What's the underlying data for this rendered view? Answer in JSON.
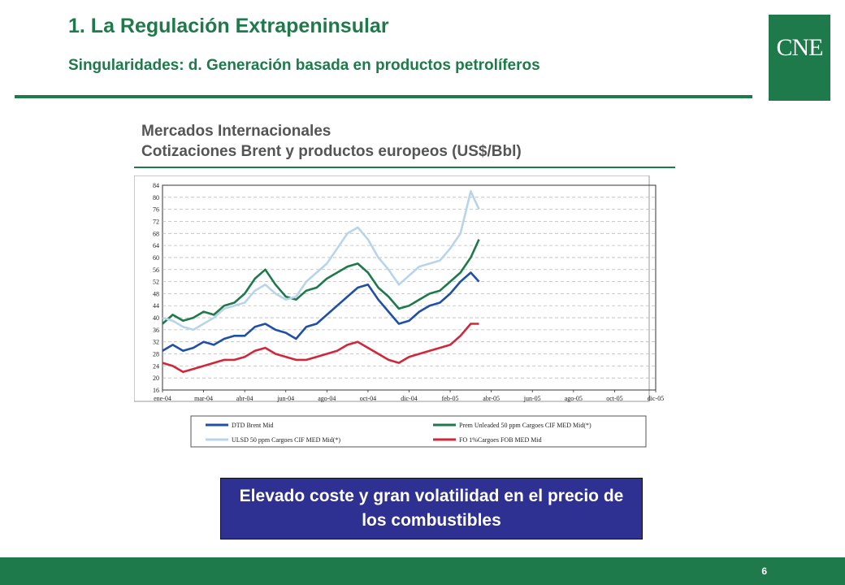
{
  "slide": {
    "title": "1. La Regulación Extrapeninsular",
    "subtitle": "Singularidades: d. Generación basada en productos petrolíferos",
    "logo_text": "CNE",
    "callout": "Elevado coste y gran volatilidad en el precio de los combustibles",
    "page_number": "6",
    "colors": {
      "accent": "#1e7a4a",
      "callout": "#2e3092"
    }
  },
  "chart_data": {
    "type": "line",
    "title_line1": "Mercados Internacionales",
    "title_line2": "Cotizaciones Brent y productos europeos (US$/Bbl)",
    "ylim": [
      16,
      84
    ],
    "yticks": [
      "16",
      "20",
      "24",
      "28",
      "32",
      "36",
      "40",
      "44",
      "48",
      "52",
      "56",
      "60",
      "64",
      "68",
      "72",
      "76",
      "80",
      "84"
    ],
    "xticks": [
      "ene-04",
      "mar-04",
      "abr-04",
      "jun-04",
      "ago-04",
      "oct-04",
      "dic-04",
      "feb-05",
      "abr-05",
      "jun-05",
      "ago-05",
      "oct-05",
      "dic-05"
    ],
    "series": [
      {
        "name": "DTD Brent Mid",
        "color": "#1f4fa8",
        "x": [
          0,
          0.25,
          0.5,
          0.75,
          1,
          1.25,
          1.5,
          1.75,
          2,
          2.25,
          2.5,
          2.75,
          3,
          3.25,
          3.5,
          3.75,
          4,
          4.25,
          4.5,
          4.75,
          5,
          5.25,
          5.5,
          5.75,
          6,
          6.25,
          6.5,
          6.75,
          7,
          7.25,
          7.5,
          7.7
        ],
        "values": [
          29,
          31,
          29,
          30,
          32,
          31,
          33,
          34,
          34,
          37,
          38,
          36,
          35,
          33,
          37,
          38,
          41,
          44,
          47,
          50,
          51,
          46,
          42,
          38,
          39,
          42,
          44,
          45,
          48,
          52,
          55,
          52
        ]
      },
      {
        "name": "Prem Unleaded 50 ppm Cargoes CIF MED Mid(*)",
        "color": "#1e7a4a",
        "x": [
          0,
          0.25,
          0.5,
          0.75,
          1,
          1.25,
          1.5,
          1.75,
          2,
          2.25,
          2.5,
          2.75,
          3,
          3.25,
          3.5,
          3.75,
          4,
          4.25,
          4.5,
          4.75,
          5,
          5.25,
          5.5,
          5.75,
          6,
          6.25,
          6.5,
          6.75,
          7,
          7.25,
          7.5,
          7.7
        ],
        "values": [
          38,
          41,
          39,
          40,
          42,
          41,
          44,
          45,
          48,
          53,
          56,
          51,
          47,
          46,
          49,
          50,
          53,
          55,
          57,
          58,
          55,
          50,
          47,
          43,
          44,
          46,
          48,
          49,
          52,
          55,
          60,
          66
        ]
      },
      {
        "name": "ULSD 50 ppm Cargoes CIF MED Mid(*)",
        "color": "#b8d4ea",
        "x": [
          0,
          0.25,
          0.5,
          0.75,
          1,
          1.25,
          1.5,
          1.75,
          2,
          2.25,
          2.5,
          2.75,
          3,
          3.25,
          3.5,
          3.75,
          4,
          4.25,
          4.5,
          4.75,
          5,
          5.25,
          5.5,
          5.75,
          6,
          6.25,
          6.5,
          6.75,
          7,
          7.25,
          7.5,
          7.7
        ],
        "values": [
          40,
          39,
          37,
          36,
          38,
          40,
          43,
          44,
          45,
          49,
          51,
          48,
          46,
          47,
          52,
          55,
          58,
          63,
          68,
          70,
          66,
          60,
          56,
          51,
          54,
          57,
          58,
          59,
          63,
          68,
          82,
          76
        ]
      },
      {
        "name": "FO 1%Cargoes FOB MED Mid",
        "color": "#d0283a",
        "x": [
          0,
          0.25,
          0.5,
          0.75,
          1,
          1.25,
          1.5,
          1.75,
          2,
          2.25,
          2.5,
          2.75,
          3,
          3.25,
          3.5,
          3.75,
          4,
          4.25,
          4.5,
          4.75,
          5,
          5.25,
          5.5,
          5.75,
          6,
          6.25,
          6.5,
          6.75,
          7,
          7.25,
          7.5,
          7.7
        ],
        "values": [
          25,
          24,
          22,
          23,
          24,
          25,
          26,
          26,
          27,
          29,
          30,
          28,
          27,
          26,
          26,
          27,
          28,
          29,
          31,
          32,
          30,
          28,
          26,
          25,
          27,
          28,
          29,
          30,
          31,
          34,
          38,
          38
        ]
      }
    ]
  }
}
